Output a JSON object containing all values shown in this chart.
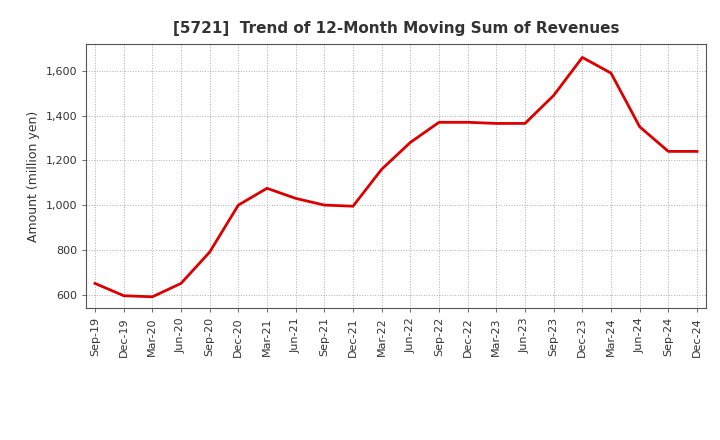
{
  "title": "[5721]  Trend of 12-Month Moving Sum of Revenues",
  "ylabel": "Amount (million yen)",
  "line_color": "#dd0000",
  "background_color": "#ffffff",
  "plot_bg_color": "#ffffff",
  "grid_color": "#999999",
  "ylim": [
    540,
    1720
  ],
  "yticks": [
    600,
    800,
    1000,
    1200,
    1400,
    1600
  ],
  "x_labels": [
    "Sep-19",
    "Dec-19",
    "Mar-20",
    "Jun-20",
    "Sep-20",
    "Dec-20",
    "Mar-21",
    "Jun-21",
    "Sep-21",
    "Dec-21",
    "Mar-22",
    "Jun-22",
    "Sep-22",
    "Dec-22",
    "Mar-23",
    "Jun-23",
    "Sep-23",
    "Dec-23",
    "Mar-24",
    "Jun-24",
    "Sep-24",
    "Dec-24"
  ],
  "y_values": [
    650,
    595,
    590,
    650,
    790,
    1000,
    1075,
    1030,
    1000,
    995,
    1160,
    1280,
    1370,
    1370,
    1365,
    1365,
    1490,
    1660,
    1590,
    1350,
    1240,
    1240
  ],
  "title_fontsize": 11,
  "ylabel_fontsize": 9,
  "tick_fontsize": 8,
  "line_width": 2.0
}
